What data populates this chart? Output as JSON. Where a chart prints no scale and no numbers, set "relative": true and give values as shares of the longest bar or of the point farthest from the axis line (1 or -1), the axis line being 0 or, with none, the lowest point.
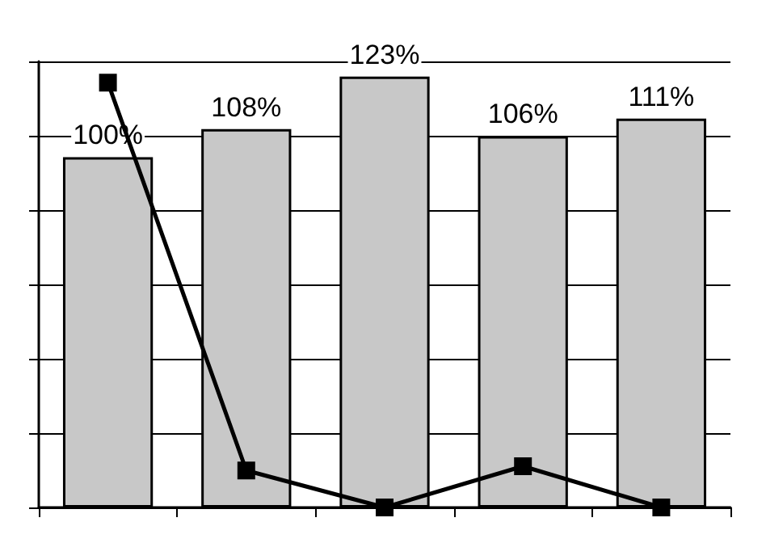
{
  "chart_data": [
    {
      "type": "bar",
      "categories": [
        null,
        null,
        null,
        null,
        null
      ],
      "grid": "y",
      "color": "#c8c8c8",
      "values": [
        100,
        108,
        123,
        106,
        111
      ],
      "value_labels": [
        "100%",
        "108%",
        "123%",
        "106%",
        "111%"
      ]
    },
    {
      "type": "line",
      "relative": true,
      "categories": [
        null,
        null,
        null,
        null,
        null
      ],
      "color": "#000000",
      "marker": "square",
      "line_style": "solid",
      "values": [
        1,
        0.087,
        0,
        0.097,
        0
      ]
    }
  ]
}
